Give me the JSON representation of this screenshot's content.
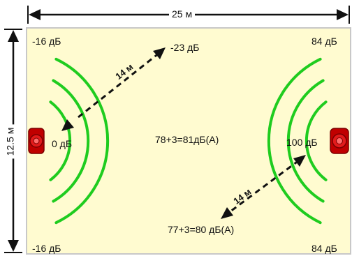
{
  "dimensions": {
    "width_label": "25 м",
    "height_label": "12.5 м"
  },
  "corners": {
    "top_left": "-16 дБ",
    "top_right": "84 дБ",
    "bottom_left": "-16 дБ",
    "bottom_right": "84 дБ"
  },
  "sources": {
    "left": {
      "level": "0 дБ"
    },
    "right": {
      "level": "100 дБ"
    }
  },
  "arrows": {
    "top": {
      "distance": "14 м",
      "result": "-23 дБ"
    },
    "bottom": {
      "distance": "14 м",
      "result": "77+3=80 дБ(А)"
    }
  },
  "center_note": "78+3=81дБ(А)",
  "colors": {
    "room_fill": "#fffbd0",
    "room_border": "#c8c8c8",
    "wave": "#1fcc1f",
    "speaker": "#d00000",
    "arrow": "#111111"
  }
}
